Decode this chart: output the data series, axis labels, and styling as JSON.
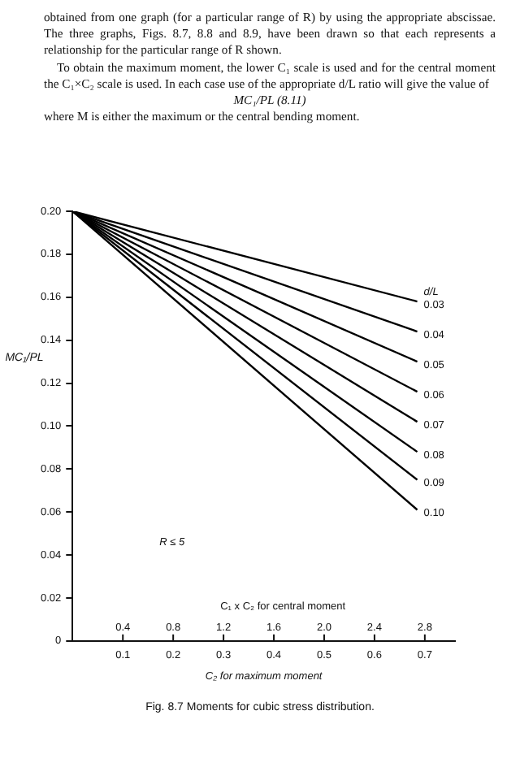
{
  "chart_data": {
    "type": "line",
    "ylabel": "MC₁/PL",
    "xlabel": "C₂ for maximum moment",
    "x2label": "C₁ x C₂ for central moment",
    "legend_title": "d/L",
    "annotations": [
      "obtained from one graph (for a particular range of R) by using the appropriate abscissae. The three graphs, Figs. 8.7, 8.8 and 8.9, have been drawn so that each represents a relationship for the particular range of R shown.",
      "To obtain the maximum moment, the lower C₁ scale is used and for the central moment the C₁×C₂ scale is used. In each case use of the appropriate d/L ratio will give the value of",
      "MC₁/PL (8.11)",
      "where M is either the maximum or the central bending moment.",
      "R ≤ 5",
      "Fig. 8.7 Moments for cubic stress distribution."
    ],
    "x": [
      0,
      0.685
    ],
    "series": [
      {
        "name": "0.03",
        "color": "#000000",
        "values": [
          0.2,
          0.158
        ]
      },
      {
        "name": "0.04",
        "color": "#000000",
        "values": [
          0.2,
          0.144
        ]
      },
      {
        "name": "0.05",
        "color": "#000000",
        "values": [
          0.2,
          0.13
        ]
      },
      {
        "name": "0.06",
        "color": "#000000",
        "values": [
          0.2,
          0.116
        ]
      },
      {
        "name": "0.07",
        "color": "#000000",
        "values": [
          0.2,
          0.102
        ]
      },
      {
        "name": "0.08",
        "color": "#000000",
        "values": [
          0.2,
          0.088
        ]
      },
      {
        "name": "0.09",
        "color": "#000000",
        "values": [
          0.2,
          0.075
        ]
      },
      {
        "name": "0.10",
        "color": "#000000",
        "values": [
          0.2,
          0.061
        ]
      }
    ],
    "xlim": [
      0,
      0.76
    ],
    "xticks": [
      0.1,
      0.2,
      0.3,
      0.4,
      0.5,
      0.6,
      0.7
    ],
    "x2lim": [
      0,
      3.04
    ],
    "x2ticks": [
      0.4,
      0.8,
      1.2,
      1.6,
      {
        "value": 2,
        "label": "2.0"
      },
      2.4,
      2.8
    ],
    "ylim": [
      0,
      0.2
    ],
    "yticks": [
      0,
      0.02,
      0.04,
      0.06,
      0.08,
      {
        "value": 0.1,
        "label": "0.10"
      },
      0.12,
      0.14,
      0.16,
      0.18,
      {
        "value": 0.2,
        "label": "0.20"
      }
    ],
    "grid": false,
    "legend": false,
    "marker": "none",
    "line_style": "solid"
  }
}
